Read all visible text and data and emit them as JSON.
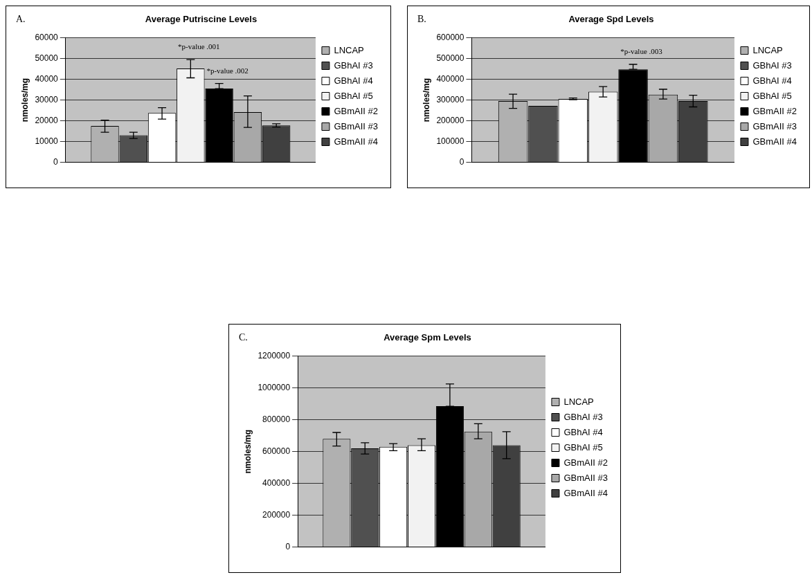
{
  "chart_data": [
    {
      "type": "bar",
      "title": "Average Putriscine Levels",
      "ylabel": "nmoles/mg",
      "annotations": [
        "A."
      ],
      "categories": [
        null
      ],
      "grid": "y",
      "legend": "right",
      "ylim": [
        0,
        60000
      ],
      "yticks": [
        0,
        10000,
        20000,
        30000,
        40000,
        50000,
        60000
      ],
      "series": [
        {
          "name": "LNCAP",
          "color": "#b0b0b0",
          "values": [
            17500
          ],
          "errors": [
            [
              14500,
              20300
            ]
          ]
        },
        {
          "name": "GBhAI #3",
          "color": "#505050",
          "values": [
            13000
          ],
          "errors": [
            [
              11500,
              14500
            ]
          ]
        },
        {
          "name": "GBhAI #4",
          "color": "#ffffff",
          "values": [
            23800
          ],
          "errors": [
            [
              20800,
              26300
            ]
          ]
        },
        {
          "name": "GBhAI #5",
          "color": "#f2f2f2",
          "values": [
            45200
          ],
          "errors": [
            [
              40700,
              49500
            ]
          ],
          "value_labels": [
            "*p-value .001"
          ]
        },
        {
          "name": "GBmAII #2",
          "color": "#000000",
          "values": [
            35500
          ],
          "errors": [
            [
              35500,
              38000
            ]
          ],
          "value_labels": [
            "*p-value .002"
          ]
        },
        {
          "name": "GBmAII #3",
          "color": "#a8a8a8",
          "values": [
            24200
          ],
          "errors": [
            [
              16800,
              32000
            ]
          ]
        },
        {
          "name": "GBmAII #4",
          "color": "#404040",
          "values": [
            17800
          ],
          "errors": [
            [
              17000,
              18600
            ]
          ]
        }
      ]
    },
    {
      "type": "bar",
      "title": "Average Spd Levels",
      "ylabel": "nmoles/mg",
      "annotations": [
        "B."
      ],
      "categories": [
        null
      ],
      "grid": "y",
      "legend": "right",
      "ylim": [
        0,
        600000
      ],
      "yticks": [
        0,
        100000,
        200000,
        300000,
        400000,
        500000,
        600000
      ],
      "series": [
        {
          "name": "LNCAP",
          "color": "#b0b0b0",
          "values": [
            295000
          ],
          "errors": [
            [
              260000,
              328000
            ]
          ]
        },
        {
          "name": "GBhAI #3",
          "color": "#505050",
          "values": [
            272000
          ]
        },
        {
          "name": "GBhAI #4",
          "color": "#ffffff",
          "values": [
            305000
          ],
          "errors": [
            [
              302000,
              310000
            ]
          ]
        },
        {
          "name": "GBhAI #5",
          "color": "#f2f2f2",
          "values": [
            340000
          ],
          "errors": [
            [
              315000,
              365000
            ]
          ]
        },
        {
          "name": "GBmAII #2",
          "color": "#000000",
          "values": [
            448000
          ],
          "errors": [
            [
              448000,
              472000
            ]
          ],
          "value_labels": [
            "*p-value .003"
          ]
        },
        {
          "name": "GBmAII #3",
          "color": "#a8a8a8",
          "values": [
            326000
          ],
          "errors": [
            [
              305000,
              352000
            ]
          ]
        },
        {
          "name": "GBmAII #4",
          "color": "#404040",
          "values": [
            295000
          ],
          "errors": [
            [
              267000,
              323000
            ]
          ]
        }
      ]
    },
    {
      "type": "bar",
      "title": "Average Spm Levels",
      "ylabel": "nmoles/mg",
      "annotations": [
        "C."
      ],
      "categories": [
        null
      ],
      "grid": "y",
      "legend": "right",
      "ylim": [
        0,
        1200000
      ],
      "yticks": [
        0,
        200000,
        400000,
        600000,
        800000,
        1000000,
        1200000
      ],
      "series": [
        {
          "name": "LNCAP",
          "color": "#b0b0b0",
          "values": [
            680000
          ],
          "errors": [
            [
              635000,
              720000
            ]
          ]
        },
        {
          "name": "GBhAI #3",
          "color": "#505050",
          "values": [
            620000
          ],
          "errors": [
            [
              585000,
              655000
            ]
          ]
        },
        {
          "name": "GBhAI #4",
          "color": "#ffffff",
          "values": [
            630000
          ],
          "errors": [
            [
              605000,
              650000
            ]
          ]
        },
        {
          "name": "GBhAI #5",
          "color": "#f2f2f2",
          "values": [
            640000
          ],
          "errors": [
            [
              605000,
              680000
            ]
          ]
        },
        {
          "name": "GBmAII #2",
          "color": "#000000",
          "values": [
            885000
          ],
          "errors": [
            [
              885000,
              1025000
            ]
          ]
        },
        {
          "name": "GBmAII #3",
          "color": "#a8a8a8",
          "values": [
            725000
          ],
          "errors": [
            [
              680000,
              775000
            ]
          ]
        },
        {
          "name": "GBmAII #4",
          "color": "#404040",
          "values": [
            640000
          ],
          "errors": [
            [
              555000,
              725000
            ]
          ]
        }
      ]
    }
  ]
}
